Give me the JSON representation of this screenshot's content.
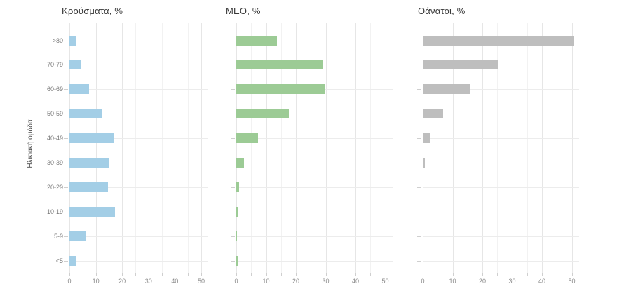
{
  "chart_data": {
    "type": "bar",
    "orientation": "horizontal",
    "title": "",
    "ylabel": "Ηλικιακή ομάδα",
    "xlabel": "",
    "categories": [
      ">80",
      "70-79",
      "60-69",
      "50-59",
      "40-49",
      "30-39",
      "20-29",
      "10-19",
      "5-9",
      "<5"
    ],
    "series": [
      {
        "name": "Κρούσματα, %",
        "color": "#A3CEE6",
        "values": [
          2.7,
          4.5,
          7.5,
          12.5,
          17.0,
          15.0,
          14.7,
          17.4,
          6.2,
          2.5
        ]
      },
      {
        "name": "ΜΕΘ, %",
        "color": "#9CCB95",
        "values": [
          13.6,
          29.2,
          29.6,
          17.6,
          7.2,
          2.5,
          1.0,
          0.4,
          0.3,
          0.4
        ]
      },
      {
        "name": "Θάνατοι, %",
        "color": "#BEBEBE",
        "values": [
          50.6,
          25.2,
          15.8,
          6.9,
          2.5,
          0.6,
          0.2,
          0.2,
          0.05,
          0.1
        ]
      }
    ],
    "x_ticks": [
      0,
      10,
      20,
      30,
      40,
      50
    ],
    "x_minor_step": 5,
    "xlim": [
      0,
      52.4
    ],
    "grid": true,
    "legend": false,
    "layout": "three side-by-side facets, y labels on first facet only"
  }
}
